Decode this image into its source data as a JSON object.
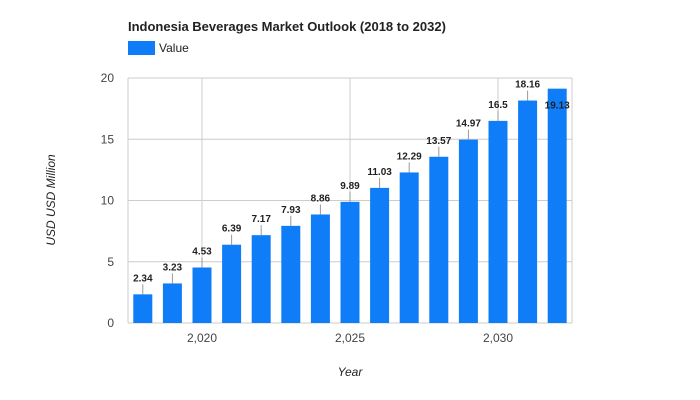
{
  "chart_data": {
    "type": "bar",
    "title": "Indonesia Beverages Market Outlook (2018 to 2032)",
    "xlabel": "Year",
    "ylabel": "USD USD Million",
    "legend": {
      "position": "top-left",
      "entries": [
        "Value"
      ]
    },
    "color": "#0f7df7",
    "grid": true,
    "ylim": [
      0,
      20
    ],
    "yticks": [
      0,
      5,
      10,
      15,
      20
    ],
    "xlim": [
      2017.5,
      2032.5
    ],
    "xticks": [
      2020,
      2025,
      2030
    ],
    "xtick_labels": [
      "2,020",
      "2,025",
      "2,030"
    ],
    "series": [
      {
        "name": "Value",
        "x": [
          2018,
          2019,
          2020,
          2021,
          2022,
          2023,
          2024,
          2025,
          2026,
          2027,
          2028,
          2029,
          2030,
          2031,
          2032
        ],
        "values": [
          2.34,
          3.23,
          4.53,
          6.39,
          7.17,
          7.93,
          8.86,
          9.89,
          11.03,
          12.29,
          13.57,
          14.97,
          16.5,
          18.16,
          19.13
        ],
        "labels": [
          "2.34",
          "3.23",
          "4.53",
          "6.39",
          "7.17",
          "7.93",
          "8.86",
          "9.89",
          "11.03",
          "12.29",
          "13.57",
          "14.97",
          "16.5",
          "18.16",
          "19.13"
        ]
      }
    ]
  }
}
